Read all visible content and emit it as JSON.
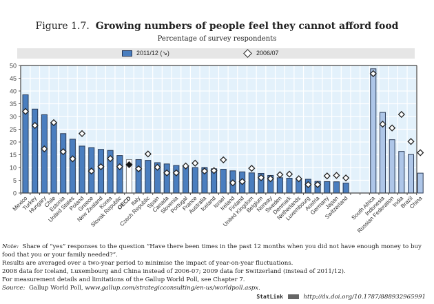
{
  "figure": {
    "number": "Figure 1.7.",
    "title": "Growing numbers of people feel they cannot afford food",
    "subtitle": "Percentage of survey respondents"
  },
  "legend": {
    "series1": "2011/12 (↘)",
    "series2": "2006/07"
  },
  "colors": {
    "oecd_bar": "#4a7ebf",
    "non_oecd_bar": "#aec6e8",
    "oecd_average_bar": "#ffffff",
    "plot_bg": "#e3f1fb",
    "legend_bg": "#e6e6e6"
  },
  "chart_data": {
    "type": "bar",
    "title": "Growing numbers of people feel they cannot afford food",
    "subtitle": "Percentage of survey respondents",
    "xlabel": "",
    "ylabel": "",
    "ylim": [
      0,
      50
    ],
    "yticks": [
      0,
      5,
      10,
      15,
      20,
      25,
      30,
      35,
      40,
      45,
      50
    ],
    "grid": true,
    "legend_position": "top",
    "categories": [
      "Mexico",
      "Turkey",
      "Hungary",
      "Chile",
      "Estonia",
      "United States",
      "Poland",
      "Greece",
      "New Zealand",
      "Korea",
      "Slovak Republic",
      "OECD",
      "Italy",
      "Czech Republic",
      "Spain",
      "Canada",
      "Slovenia",
      "Portugal",
      "France",
      "Australia",
      "Iceland",
      "Israel",
      "Ireland",
      "Finland",
      "United Kingdom",
      "Belgium",
      "Norway",
      "Sweden",
      "Denmark",
      "Netherlands",
      "Luxembourg",
      "Austria",
      "Germany",
      "Japan",
      "Switzerland",
      "South Africa",
      "Indonesia",
      "Russian Federation",
      "India",
      "Brazil",
      "China"
    ],
    "groups": [
      "oecd",
      "oecd",
      "oecd",
      "oecd",
      "oecd",
      "oecd",
      "oecd",
      "oecd",
      "oecd",
      "oecd",
      "oecd",
      "average",
      "oecd",
      "oecd",
      "oecd",
      "oecd",
      "oecd",
      "oecd",
      "oecd",
      "oecd",
      "oecd",
      "oecd",
      "oecd",
      "oecd",
      "oecd",
      "oecd",
      "oecd",
      "oecd",
      "oecd",
      "oecd",
      "oecd",
      "oecd",
      "oecd",
      "oecd",
      "oecd",
      "partner",
      "partner",
      "partner",
      "partner",
      "partner",
      "partner"
    ],
    "series": [
      {
        "name": "2011/12 (↘)",
        "kind": "bar",
        "values": [
          38.5,
          32.9,
          30.7,
          27.6,
          23.3,
          21.1,
          18.4,
          17.8,
          17.1,
          16.7,
          14.7,
          13.1,
          13.1,
          12.8,
          11.9,
          11.4,
          10.8,
          10.5,
          10.0,
          10.0,
          9.5,
          9.3,
          8.7,
          8.3,
          7.9,
          7.7,
          6.9,
          6.0,
          5.8,
          5.6,
          5.4,
          4.6,
          4.5,
          4.4,
          3.9,
          48.7,
          31.6,
          20.9,
          16.3,
          15.1,
          7.8
        ]
      },
      {
        "name": "2006/07",
        "kind": "diamond",
        "values": [
          32.0,
          26.5,
          17.3,
          27.6,
          16.2,
          13.4,
          23.3,
          8.6,
          10.3,
          13.5,
          10.3,
          11.1,
          9.5,
          15.3,
          10.1,
          7.9,
          7.9,
          10.6,
          11.7,
          8.6,
          8.8,
          13.0,
          4.0,
          4.5,
          9.7,
          6.0,
          5.6,
          7.2,
          7.4,
          5.6,
          3.3,
          3.3,
          6.7,
          6.9,
          5.9,
          46.8,
          27.0,
          25.5,
          30.8,
          20.2,
          15.8
        ]
      }
    ]
  },
  "notes": {
    "note_label": "Note:",
    "note_text": "Share of “yes” responses to the question “Have there been times in the past 12 months when you did not have enough money to buy food that you or your family needed?”.",
    "line2": "Results are averaged over a two-year period to minimise the impact of year-on-year fluctuations.",
    "line3": "2008 data for Iceland, Luxembourg and China instead of 2006-07; 2009 data for Switzerland (instead of 2011/12).",
    "line4": "For measurement details and limitations of the Gallup World Poll, see Chapter 7.",
    "source_label": "Source:",
    "source_text": "Gallup World Poll,",
    "source_url": "www.gallup.com/strategicconsulting/en-us/worldpoll.aspx."
  },
  "statlink": {
    "label": "StatLink",
    "url": "http://dx.doi.org/10.1787/888932965991"
  }
}
